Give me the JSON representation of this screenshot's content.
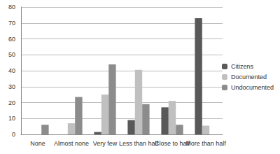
{
  "chart_data": {
    "type": "bar",
    "categories": [
      "None",
      "Almost none",
      "Very few",
      "Less than half",
      "Close to half",
      "More than half"
    ],
    "series": [
      {
        "name": "Citizens",
        "color": "#595959",
        "values": [
          0,
          0,
          1.5,
          9,
          17,
          73
        ]
      },
      {
        "name": "Documented",
        "color": "#c0c0c0",
        "values": [
          0,
          7,
          25,
          40.5,
          21,
          5.5
        ]
      },
      {
        "name": "Undocumented",
        "color": "#8c8c8c",
        "values": [
          6,
          23.5,
          44,
          19,
          6,
          0
        ]
      }
    ],
    "ylim": [
      0,
      80
    ],
    "yticks": [
      0,
      10,
      20,
      30,
      40,
      50,
      60,
      70,
      80
    ],
    "grid": true,
    "legend": "right"
  }
}
